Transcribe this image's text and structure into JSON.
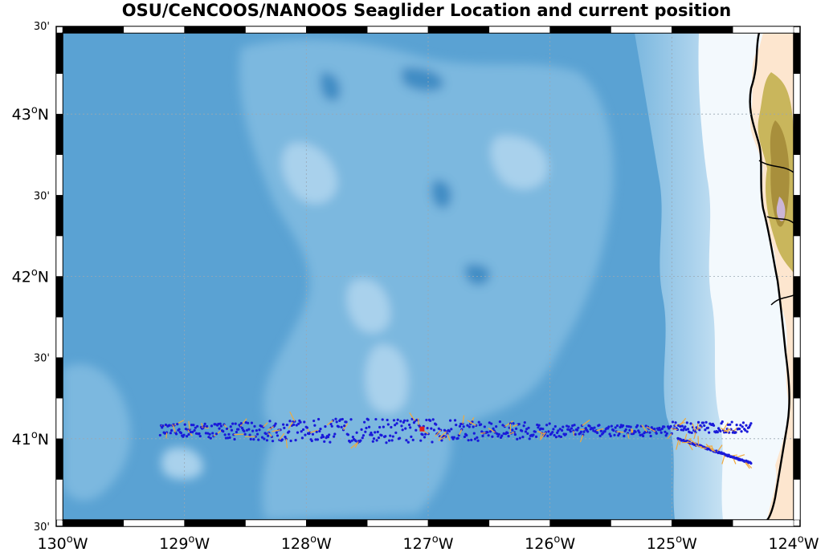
{
  "title": "OSU/CeNCOOS/NANOOS Seaglider Location and current position",
  "axes": {
    "lon_ticks": [
      {
        "value": -130,
        "label": "130",
        "suffix": "W"
      },
      {
        "value": -129,
        "label": "129",
        "suffix": "W"
      },
      {
        "value": -128,
        "label": "128",
        "suffix": "W"
      },
      {
        "value": -127,
        "label": "127",
        "suffix": "W"
      },
      {
        "value": -126,
        "label": "126",
        "suffix": "W"
      },
      {
        "value": -125,
        "label": "125",
        "suffix": "W"
      },
      {
        "value": -124,
        "label": "124",
        "suffix": "W"
      }
    ],
    "lat_ticks": [
      {
        "value": 43.5,
        "label": "30'",
        "major": false
      },
      {
        "value": 43.0,
        "label": "43",
        "suffix": "N",
        "major": true
      },
      {
        "value": 42.5,
        "label": "30'",
        "major": false
      },
      {
        "value": 42.0,
        "label": "42",
        "suffix": "N",
        "major": true
      },
      {
        "value": 41.5,
        "label": "30'",
        "major": false
      },
      {
        "value": 41.0,
        "label": "41",
        "suffix": "N",
        "major": true
      },
      {
        "value": 40.5,
        "label": "30'",
        "major": false
      }
    ],
    "lon_range": [
      -130,
      -124
    ],
    "lat_range": [
      40.5,
      43.5
    ],
    "grid": true
  },
  "colors": {
    "deep_ocean": "#5aa2d3",
    "mid_ocean": "#7cb8df",
    "shallow_ocean": "#a9d1ec",
    "shelf": "#d4e9f6",
    "coast_water": "#eef6fc",
    "land": "#fde6cf",
    "terrain_low": "#c9b65c",
    "terrain_high": "#a88f3c",
    "terrain_peak": "#cbb5d6",
    "track": "#1a1ad9",
    "current_vectors": "#f2a93b",
    "current_position": "#e0201e"
  },
  "chart_data": {
    "type": "scatter",
    "glider_track": {
      "offshore_leg": {
        "lon_start": -129.2,
        "lon_end": -124.35,
        "lat_center": 41.05
      },
      "coastal_branch": {
        "lon_start": -124.95,
        "lon_end": -124.35,
        "lat_start": 41.0,
        "lat_end": 40.85
      }
    },
    "current_position": {
      "lon": -127.05,
      "lat": 41.06
    }
  }
}
